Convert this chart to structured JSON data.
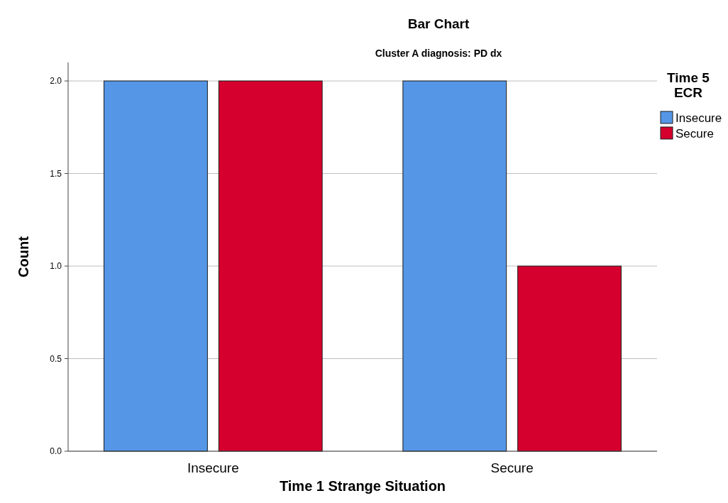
{
  "chart_data": {
    "type": "bar",
    "title": "Bar Chart",
    "subtitle": "Cluster A diagnosis: PD dx",
    "xlabel": "Time 1 Strange Situation",
    "ylabel": "Count",
    "legend_title": "Time 5 ECR",
    "categories": [
      "Insecure",
      "Secure"
    ],
    "series": [
      {
        "name": "Insecure",
        "color": "#5596e6",
        "values": [
          2,
          2
        ]
      },
      {
        "name": "Secure",
        "color": "#d5002d",
        "values": [
          2,
          1
        ]
      }
    ],
    "ylim": [
      0,
      2.1
    ],
    "yticks": [
      {
        "value": 0,
        "label": "0.0"
      },
      {
        "value": 0.5,
        "label": "0.5"
      },
      {
        "value": 1,
        "label": "1.0"
      },
      {
        "value": 1.5,
        "label": "1.5"
      },
      {
        "value": 2,
        "label": "2.0"
      }
    ],
    "grid": "y",
    "legend": "top right"
  }
}
